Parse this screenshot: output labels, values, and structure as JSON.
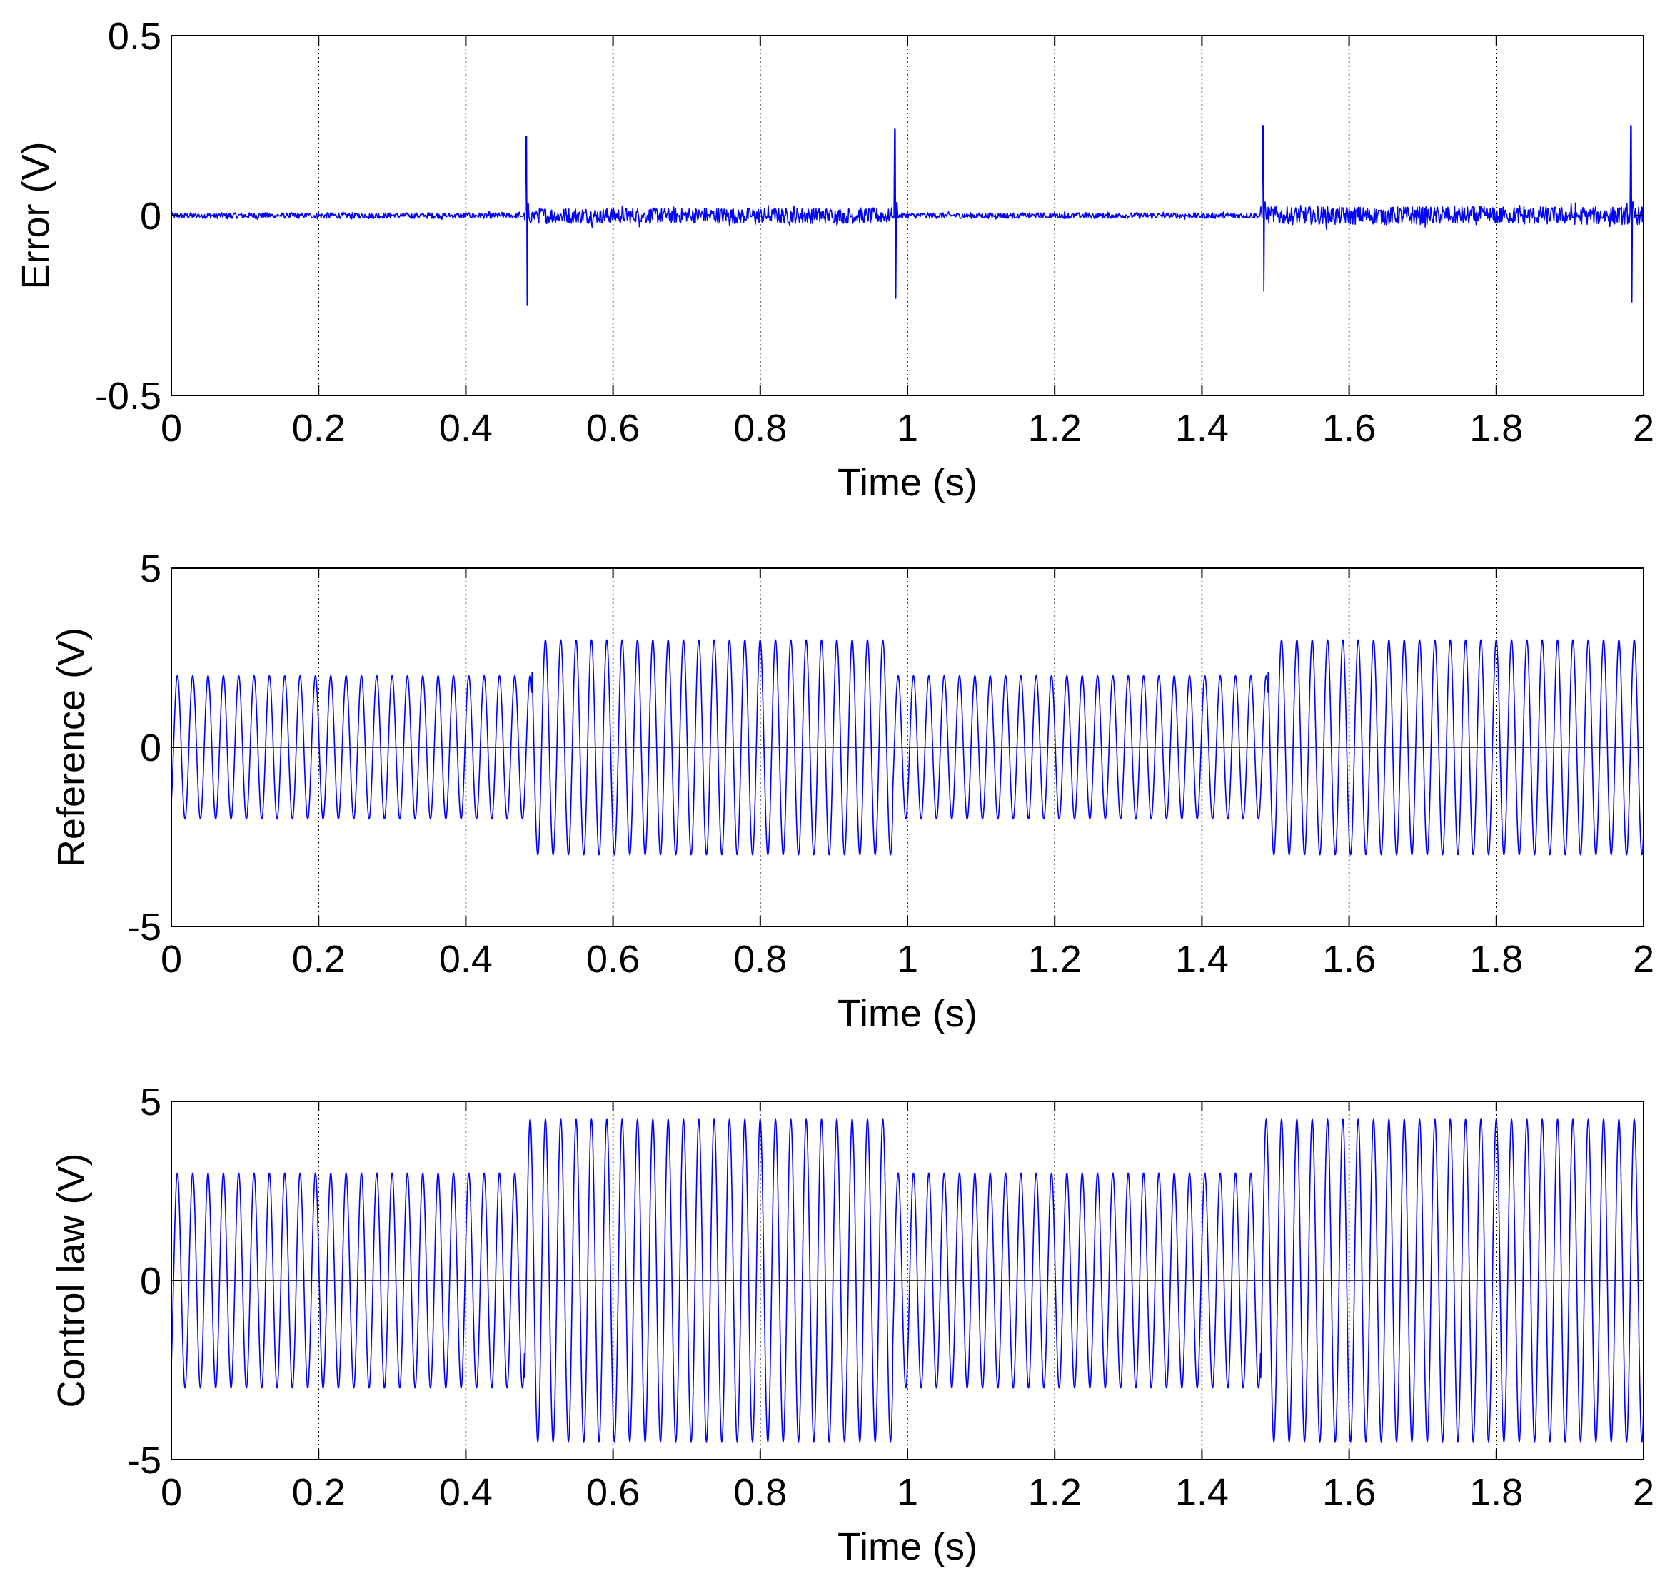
{
  "figure": {
    "colors": {
      "trace": "#0000ff",
      "axis": "#000000",
      "grid": "#000000",
      "background": "#ffffff"
    }
  },
  "chart_data": [
    {
      "id": "error",
      "type": "line",
      "title": "",
      "xlabel": "Time (s)",
      "ylabel": "Error (V)",
      "xlim": [
        0,
        2
      ],
      "ylim": [
        -0.5,
        0.5
      ],
      "xticks": [
        0,
        0.2,
        0.4,
        0.6,
        0.8,
        1,
        1.2,
        1.4,
        1.6,
        1.8,
        2
      ],
      "xtick_labels": [
        "0",
        "0.2",
        "0.4",
        "0.6",
        "0.8",
        "1",
        "1.2",
        "1.4",
        "1.6",
        "1.8",
        "2"
      ],
      "yticks": [
        -0.5,
        0,
        0.5
      ],
      "ytick_labels": [
        "-0.5",
        "0",
        "0.5"
      ],
      "grid": "vertical-dotted",
      "zero_line": false,
      "series": [
        {
          "name": "error",
          "color": "#0000ff",
          "noise_amplitude": [
            [
              0,
              0.48,
              0.008
            ],
            [
              0.48,
              0.98,
              0.022
            ],
            [
              0.98,
              1.48,
              0.008
            ],
            [
              1.48,
              2,
              0.025
            ]
          ],
          "spikes": [
            {
              "t": 0.482,
              "max": 0.22,
              "min": -0.25
            },
            {
              "t": 0.983,
              "max": 0.24,
              "min": -0.23
            },
            {
              "t": 1.483,
              "max": 0.25,
              "min": -0.21
            },
            {
              "t": 1.983,
              "max": 0.25,
              "min": -0.24
            }
          ]
        }
      ]
    },
    {
      "id": "reference",
      "type": "line",
      "title": "",
      "xlabel": "Time (s)",
      "ylabel": "Reference (V)",
      "xlim": [
        0,
        2
      ],
      "ylim": [
        -5,
        5
      ],
      "xticks": [
        0,
        0.2,
        0.4,
        0.6,
        0.8,
        1,
        1.2,
        1.4,
        1.6,
        1.8,
        2
      ],
      "xtick_labels": [
        "0",
        "0.2",
        "0.4",
        "0.6",
        "0.8",
        "1",
        "1.2",
        "1.4",
        "1.6",
        "1.8",
        "2"
      ],
      "yticks": [
        -5,
        0,
        5
      ],
      "ytick_labels": [
        "-5",
        "0",
        "5"
      ],
      "grid": "vertical-dotted",
      "zero_line": true,
      "series": [
        {
          "name": "reference",
          "color": "#0000ff",
          "waveform": "sine",
          "frequency_hz": 48,
          "amplitude_segments": [
            [
              0,
              0.49,
              2
            ],
            [
              0.49,
              0.98,
              3
            ],
            [
              0.98,
              1.49,
              2
            ],
            [
              1.49,
              2,
              3
            ]
          ]
        }
      ]
    },
    {
      "id": "control",
      "type": "line",
      "title": "",
      "xlabel": "Time (s)",
      "ylabel": "Control law (V)",
      "xlim": [
        0,
        2
      ],
      "ylim": [
        -5,
        5
      ],
      "xticks": [
        0,
        0.2,
        0.4,
        0.6,
        0.8,
        1,
        1.2,
        1.4,
        1.6,
        1.8,
        2
      ],
      "xtick_labels": [
        "0",
        "0.2",
        "0.4",
        "0.6",
        "0.8",
        "1",
        "1.2",
        "1.4",
        "1.6",
        "1.8",
        "2"
      ],
      "yticks": [
        -5,
        0,
        5
      ],
      "ytick_labels": [
        "-5",
        "0",
        "5"
      ],
      "grid": "vertical-dotted",
      "zero_line": true,
      "series": [
        {
          "name": "control law",
          "color": "#0000ff",
          "waveform": "sine",
          "frequency_hz": 48,
          "amplitude_segments": [
            [
              0,
              0.48,
              3
            ],
            [
              0.48,
              0.98,
              4.5
            ],
            [
              0.98,
              1.48,
              3
            ],
            [
              1.48,
              2,
              4.5
            ]
          ]
        }
      ]
    }
  ]
}
